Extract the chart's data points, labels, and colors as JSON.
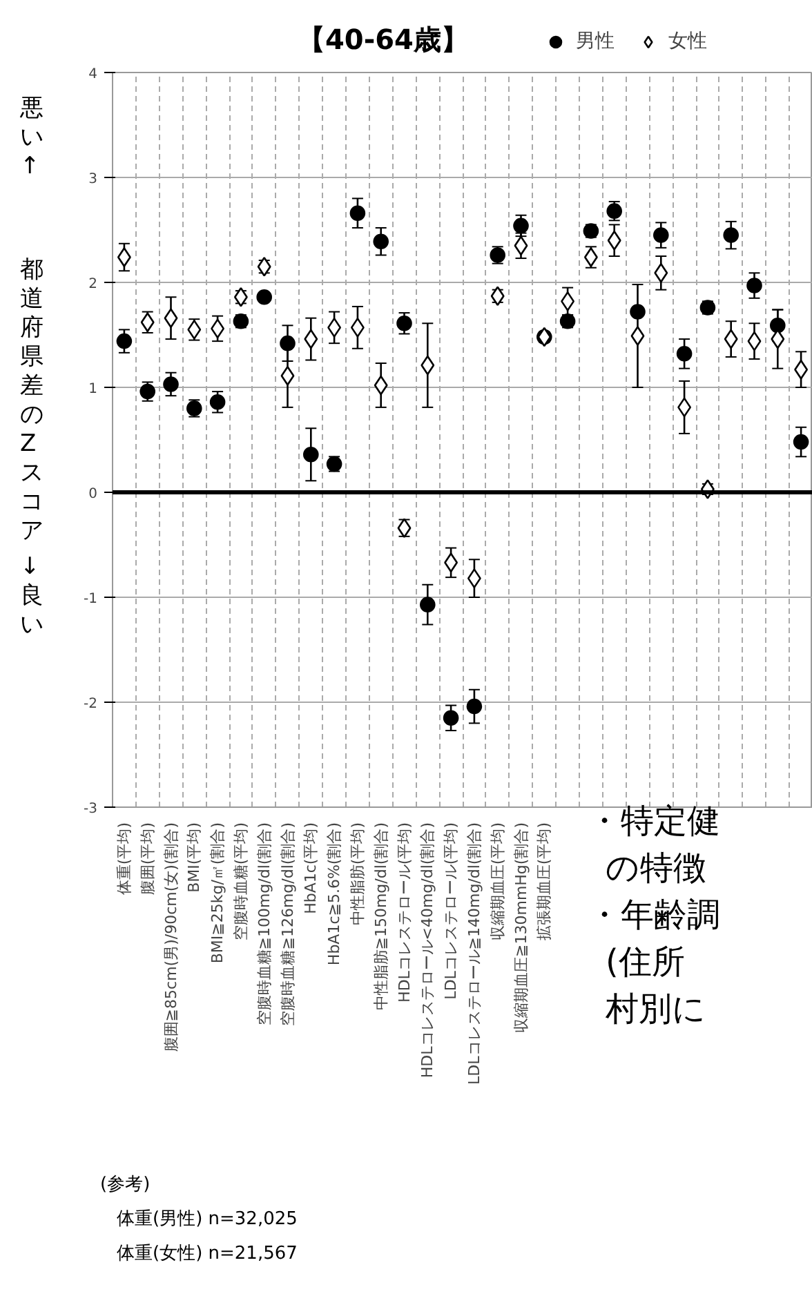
{
  "chart_data": {
    "type": "scatter",
    "title": "【40-64歳】",
    "ylabel": "都道府県差のZスコア",
    "categories": [
      "体重(平均)",
      "腹囲(平均)",
      "腹囲≧85cm(男)/90cm(女)(割合)",
      "BMI(平均)",
      "BMI≧25kg/㎡(割合)",
      "空腹時血糖(平均)",
      "空腹時血糖≧100mg/dl(割合)",
      "空腹時血糖≧126mg/dl(割合)",
      "HbA1c(平均)",
      "HbA1c≧5.6%(割合)",
      "中性脂肪(平均)",
      "中性脂肪≧150mg/dl(割合)",
      "HDLコレステロール(平均)",
      "HDLコレステロール<40mg/dl(割合)",
      "LDLコレステロール(平均)",
      "LDLコレステロール≧140mg/dl(割合)",
      "収縮期血圧(平均)",
      "収縮期血圧≧130mmHg(割合)",
      "拡張期血圧(平均)",
      null,
      null,
      null,
      null,
      null,
      null,
      null,
      null,
      null,
      null,
      null
    ],
    "series": [
      {
        "name": "男性",
        "color": "#000000",
        "marker": "circle",
        "values": [
          1.44,
          0.96,
          1.03,
          0.8,
          0.86,
          1.63,
          1.86,
          1.42,
          0.36,
          0.27,
          2.66,
          2.39,
          1.61,
          -1.07,
          -2.15,
          -2.04,
          2.26,
          2.54,
          1.48,
          1.63,
          2.49,
          2.68,
          1.72,
          2.45,
          1.32,
          1.76,
          2.45,
          1.97,
          1.59,
          0.48
        ],
        "errors": [
          0.11,
          0.09,
          0.11,
          0.08,
          0.1,
          0.06,
          0.03,
          0.17,
          0.25,
          0.07,
          0.14,
          0.13,
          0.1,
          0.19,
          0.12,
          0.16,
          0.08,
          0.1,
          0.05,
          0.06,
          0.06,
          0.09,
          null,
          0.12,
          0.14,
          0.06,
          0.13,
          0.12,
          0.15,
          0.14
        ]
      },
      {
        "name": "女性",
        "color": "#000000",
        "marker": "diamond",
        "values": [
          2.24,
          1.62,
          1.66,
          1.55,
          1.56,
          1.86,
          2.15,
          1.11,
          1.46,
          1.57,
          1.57,
          1.02,
          -0.34,
          1.21,
          -0.67,
          -0.82,
          1.87,
          2.35,
          1.48,
          1.82,
          2.24,
          2.4,
          1.49,
          2.09,
          0.81,
          0.03,
          1.46,
          1.44,
          1.46,
          1.17
        ],
        "errors": [
          0.13,
          0.1,
          0.2,
          0.1,
          0.12,
          0.06,
          0.06,
          0.3,
          0.2,
          0.15,
          0.2,
          0.21,
          0.08,
          0.4,
          0.14,
          0.18,
          0.06,
          0.12,
          0.04,
          0.13,
          0.1,
          0.15,
          0.49,
          0.16,
          0.25,
          0.05,
          0.17,
          0.17,
          0.28,
          0.17
        ]
      }
    ],
    "ylim": [
      -3,
      4
    ],
    "yticks": [
      -3,
      -2,
      -1,
      0,
      1,
      2,
      3,
      4
    ],
    "grid": true,
    "legend": "top right",
    "ref_lines": [
      {
        "axis": "y",
        "value": 0,
        "color": "#000000"
      }
    ],
    "annotations": [
      "悪い↑",
      "↓良い",
      "・特定健",
      "の特徴",
      "・年齢調",
      "(住所",
      "村別に",
      "(参考)",
      "体重(男性)  n=32,025",
      "体重(女性)  n=21,567"
    ]
  }
}
